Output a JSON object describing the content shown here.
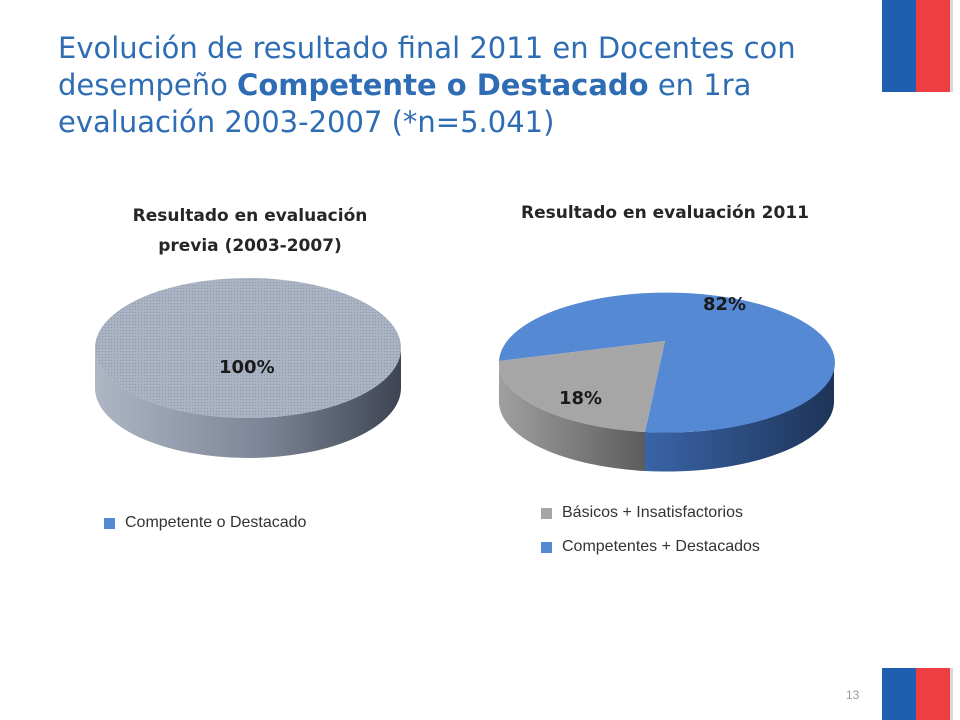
{
  "title": {
    "part1": "Evolución de resultado final 2011 en Docentes con desempeño ",
    "bold": "Competente o Destacado",
    "part2": " en 1ra evaluación 2003-2007 (*n=5.041)"
  },
  "page_number": "13",
  "colors": {
    "title": "#2e6db4",
    "flag_blue": "#1f5fb0",
    "flag_red": "#ef3e42",
    "pie_gray_top": "#a7b1c2",
    "pie_blue": "#5589d3",
    "pie_basic_gray": "#a6a6a6"
  },
  "chart_data": [
    {
      "type": "pie",
      "title_line1": "Resultado en evaluación",
      "title_line2": "previa (2003-2007)",
      "categories": [
        "Competente o Destacado"
      ],
      "values": [
        100
      ],
      "labels": [
        "100%"
      ],
      "legend": [
        "Competente o Destacado"
      ],
      "legend_colors": [
        "#5589d3"
      ],
      "style": "3d"
    },
    {
      "type": "pie",
      "title": "Resultado en evaluación 2011",
      "categories": [
        "Básicos + Insatisfactorios",
        "Competentes + Destacados"
      ],
      "values": [
        18,
        82
      ],
      "labels": [
        "18%",
        "82%"
      ],
      "legend": [
        "Básicos + Insatisfactorios",
        "Competentes + Destacados"
      ],
      "legend_colors": [
        "#a6a6a6",
        "#5589d3"
      ],
      "style": "3d"
    }
  ]
}
